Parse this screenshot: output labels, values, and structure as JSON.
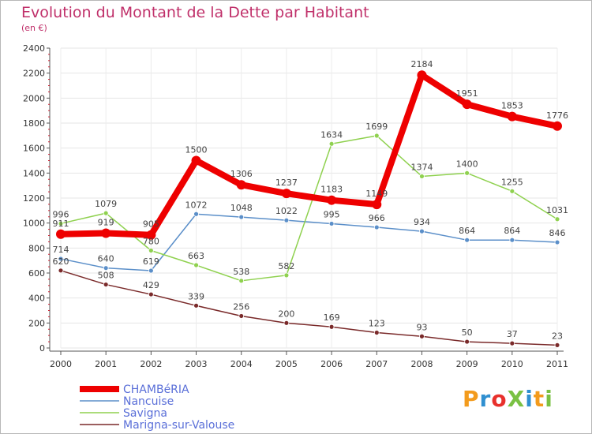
{
  "title": "Evolution du Montant de la Dette par Habitant",
  "subtitle": "(en €)",
  "logo": {
    "text": "ProXiti",
    "colors": [
      "#f39b1c",
      "#2f8fd0",
      "#e8312c",
      "#7ac143",
      "#2f8fd0",
      "#f39b1c",
      "#7ac143"
    ]
  },
  "chart_data": {
    "type": "line",
    "categories": [
      "2000",
      "2001",
      "2002",
      "2003",
      "2004",
      "2005",
      "2006",
      "2007",
      "2008",
      "2009",
      "2010",
      "2011"
    ],
    "ylim": [
      0,
      2400
    ],
    "yticks": [
      0,
      200,
      400,
      600,
      800,
      1000,
      1200,
      1400,
      1600,
      1800,
      2000,
      2200,
      2400
    ],
    "series": [
      {
        "name": "CHAMBéRIA",
        "color": "#ee0000",
        "values": [
          911,
          919,
          905,
          1500,
          1306,
          1237,
          1183,
          1149,
          2184,
          1951,
          1853,
          1776
        ]
      },
      {
        "name": "Nancuise",
        "color": "#5b8fc9",
        "values": [
          714,
          640,
          619,
          1072,
          1048,
          1022,
          995,
          966,
          934,
          864,
          864,
          846
        ]
      },
      {
        "name": "Savigna",
        "color": "#8fd14f",
        "values": [
          996,
          1079,
          780,
          663,
          538,
          582,
          1634,
          1699,
          1374,
          1400,
          1255,
          1031
        ]
      },
      {
        "name": "Marigna-sur-Valouse",
        "color": "#7a2a2a",
        "values": [
          620,
          508,
          429,
          339,
          256,
          200,
          169,
          123,
          93,
          50,
          37,
          23
        ]
      }
    ]
  }
}
